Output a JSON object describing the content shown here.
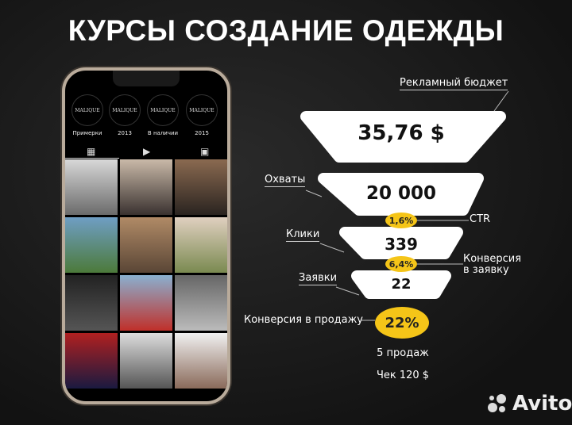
{
  "title": "КУРСЫ СОЗДАНИЕ ОДЕЖДЫ",
  "phone": {
    "highlights": [
      {
        "logo": "MALIQUE",
        "label": "Примерки"
      },
      {
        "logo": "MALIQUE",
        "label": "2013"
      },
      {
        "logo": "MALIQUE",
        "label": "В наличии"
      },
      {
        "logo": "MALIQUE",
        "label": "2015"
      }
    ],
    "tabs": [
      "grid-icon",
      "reels-icon",
      "tagged-icon"
    ]
  },
  "funnel": {
    "budget": {
      "label": "Рекламный бюджет",
      "value": "35,76 $"
    },
    "reach": {
      "label": "Охваты",
      "value": "20 000"
    },
    "ctr": {
      "label": "CTR",
      "value": "1,6%"
    },
    "clicks": {
      "label": "Клики",
      "value": "339"
    },
    "lead_conv": {
      "label1": "Конверсия",
      "label2": "в заявку",
      "value": "6,4%"
    },
    "leads": {
      "label": "Заявки",
      "value": "22"
    },
    "sale_conv": {
      "label": "Конверсия в продажу",
      "value": "22%"
    },
    "sales": "5 продаж",
    "check": "Чек 120 $"
  },
  "colors": {
    "accent": "#f5c518",
    "background": "#1a1a1a"
  },
  "watermark": "Avito"
}
